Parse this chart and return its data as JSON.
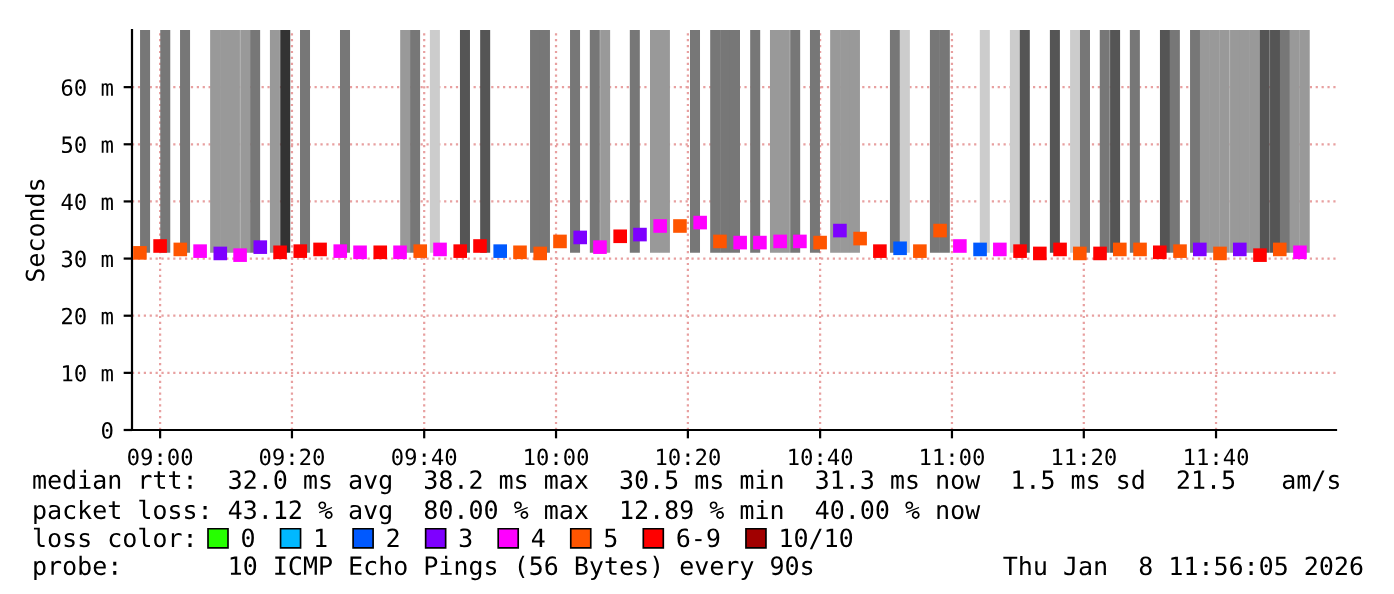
{
  "chart_data": {
    "type": "scatter",
    "ylabel": "Seconds",
    "legend_title": "loss color:",
    "legend": "bottom",
    "grid": true,
    "marker": "square",
    "xlim": [
      8.929,
      11.97
    ],
    "xticks": [
      {
        "value": 9,
        "label": "09:00"
      },
      {
        "value": 9.333,
        "label": "09:20"
      },
      {
        "value": 9.667,
        "label": "09:40"
      },
      {
        "value": 10,
        "label": "10:00"
      },
      {
        "value": 10.333,
        "label": "10:20"
      },
      {
        "value": 10.667,
        "label": "10:40"
      },
      {
        "value": 11,
        "label": "11:00"
      },
      {
        "value": 11.333,
        "label": "11:20"
      },
      {
        "value": 11.667,
        "label": "11:40"
      }
    ],
    "ylim": [
      0,
      70
    ],
    "yticks": [
      0,
      {
        "value": 10,
        "label": "10 m"
      },
      {
        "value": 20,
        "label": "20 m"
      },
      {
        "value": 30,
        "label": "30 m"
      },
      {
        "value": 40,
        "label": "40 m"
      },
      {
        "value": 50,
        "label": "50 m"
      },
      {
        "value": 60,
        "label": "60 m"
      }
    ],
    "series": [
      {
        "type": "bar",
        "x": [
          8.962,
          9.013,
          9.063,
          9.139,
          9.164,
          9.189,
          9.215,
          9.24,
          9.29,
          9.316,
          9.366,
          9.467,
          9.619,
          9.644,
          9.694,
          9.77,
          9.821,
          9.947,
          9.972,
          10.048,
          10.098,
          10.124,
          10.199,
          10.25,
          10.275,
          10.351,
          10.402,
          10.427,
          10.452,
          10.503,
          10.553,
          10.578,
          10.604,
          10.654,
          10.705,
          10.73,
          10.755,
          10.856,
          10.881,
          10.957,
          10.982,
          11.083,
          11.159,
          11.184,
          11.26,
          11.311,
          11.336,
          11.386,
          11.412,
          11.462,
          11.538,
          11.563,
          11.614,
          11.639,
          11.664,
          11.689,
          11.715,
          11.74,
          11.765,
          11.79,
          11.816,
          11.841,
          11.866,
          11.891
        ],
        "base": [
          31,
          31,
          31,
          31,
          31,
          31,
          31,
          31,
          31,
          31,
          31,
          31,
          31,
          31,
          31,
          31,
          31,
          31,
          31,
          31,
          31,
          31,
          31,
          31,
          31,
          31,
          31,
          31,
          31,
          31,
          31,
          31,
          31,
          31,
          31,
          31,
          31,
          31,
          31,
          31,
          31,
          31,
          31,
          31,
          31,
          31,
          31,
          31,
          31,
          31,
          31,
          31,
          31,
          31,
          31,
          31,
          31,
          31,
          31,
          31,
          31,
          31,
          31,
          31
        ],
        "values": [
          39,
          39,
          39,
          39,
          39,
          39,
          39,
          39,
          39,
          39,
          39,
          39,
          39,
          39,
          39,
          39,
          39,
          39,
          39,
          39,
          39,
          39,
          39,
          39,
          39,
          39,
          39,
          39,
          39,
          39,
          39,
          39,
          39,
          39,
          39,
          39,
          39,
          39,
          39,
          39,
          39,
          39,
          39,
          39,
          39,
          39,
          39,
          39,
          39,
          39,
          39,
          39,
          39,
          39,
          39,
          39,
          39,
          39,
          39,
          39,
          39,
          39,
          39,
          39
        ],
        "colors": [
          "#777777",
          "#777777",
          "#777777",
          "#999999",
          "#999999",
          "#999999",
          "#999999",
          "#777777",
          "#999999",
          "#333333",
          "#777777",
          "#777777",
          "#999999",
          "#777777",
          "#cccccc",
          "#555555",
          "#555555",
          "#777777",
          "#777777",
          "#777777",
          "#777777",
          "#999999",
          "#777777",
          "#999999",
          "#999999",
          "#777777",
          "#777777",
          "#777777",
          "#777777",
          "#777777",
          "#999999",
          "#999999",
          "#777777",
          "#777777",
          "#999999",
          "#999999",
          "#999999",
          "#777777",
          "#cccccc",
          "#777777",
          "#777777",
          "#cccccc",
          "#cccccc",
          "#555555",
          "#555555",
          "#cccccc",
          "#777777",
          "#777777",
          "#555555",
          "#777777",
          "#555555",
          "#777777",
          "#777777",
          "#999999",
          "#999999",
          "#999999",
          "#999999",
          "#999999",
          "#999999",
          "#555555",
          "#555555",
          "#777777",
          "#999999",
          "#999999"
        ]
      },
      {
        "name": "0",
        "color": "#26ff00"
      },
      {
        "name": "1",
        "color": "#00b8ff"
      },
      {
        "name": "2",
        "color": "#0059ff",
        "x": [
          9.859,
          10.869,
          11.071
        ],
        "values": [
          31.3,
          31.8,
          31.6
        ]
      },
      {
        "name": "3",
        "color": "#7e00ff",
        "x": [
          9.152,
          9.253,
          10.061,
          10.212,
          10.717,
          11.626,
          11.727
        ],
        "values": [
          30.9,
          32.0,
          33.7,
          34.2,
          34.9,
          31.6,
          31.6
        ]
      },
      {
        "name": "4",
        "color": "#ff00ff",
        "x": [
          9.101,
          9.202,
          9.455,
          9.505,
          9.606,
          9.707,
          10.111,
          10.263,
          10.364,
          10.465,
          10.515,
          10.566,
          10.616,
          11.02,
          11.121,
          11.879
        ],
        "values": [
          31.3,
          30.6,
          31.3,
          31.1,
          31.1,
          31.6,
          32.0,
          35.7,
          36.3,
          32.8,
          32.8,
          33.0,
          33.0,
          32.2,
          31.6,
          31.1
        ]
      },
      {
        "name": "5",
        "color": "#ff5500",
        "x": [
          8.949,
          9.051,
          9.657,
          9.909,
          9.96,
          10.01,
          10.313,
          10.414,
          10.667,
          10.768,
          10.919,
          10.97,
          11.323,
          11.424,
          11.475,
          11.576,
          11.677,
          11.828
        ],
        "values": [
          31.0,
          31.6,
          31.3,
          31.1,
          30.9,
          33.0,
          35.7,
          33.0,
          32.8,
          33.5,
          31.3,
          34.9,
          30.9,
          31.6,
          31.6,
          31.3,
          30.9,
          31.6
        ]
      },
      {
        "name": "6-9",
        "color": "#ff0000",
        "x": [
          9.0,
          9.303,
          9.354,
          9.404,
          9.556,
          9.758,
          9.808,
          10.162,
          10.818,
          11.172,
          11.222,
          11.273,
          11.374,
          11.525,
          11.778
        ],
        "values": [
          32.2,
          31.1,
          31.3,
          31.6,
          31.1,
          31.3,
          32.2,
          33.9,
          31.3,
          31.3,
          30.9,
          31.6,
          30.9,
          31.1,
          30.6
        ]
      },
      {
        "name": "10/10",
        "color": "#a10000"
      }
    ],
    "annotations": [
      "median rtt:  32.0 ms avg  38.2 ms max  30.5 ms min  31.3 ms now  1.5 ms sd  21.5   am/s",
      "packet loss: 43.12 % avg  80.00 % max  12.89 % min  40.00 % now",
      "probe:       10 ICMP Echo Pings (56 Bytes) every 90s",
      "Thu Jan  8 11:56:05 2026"
    ]
  }
}
